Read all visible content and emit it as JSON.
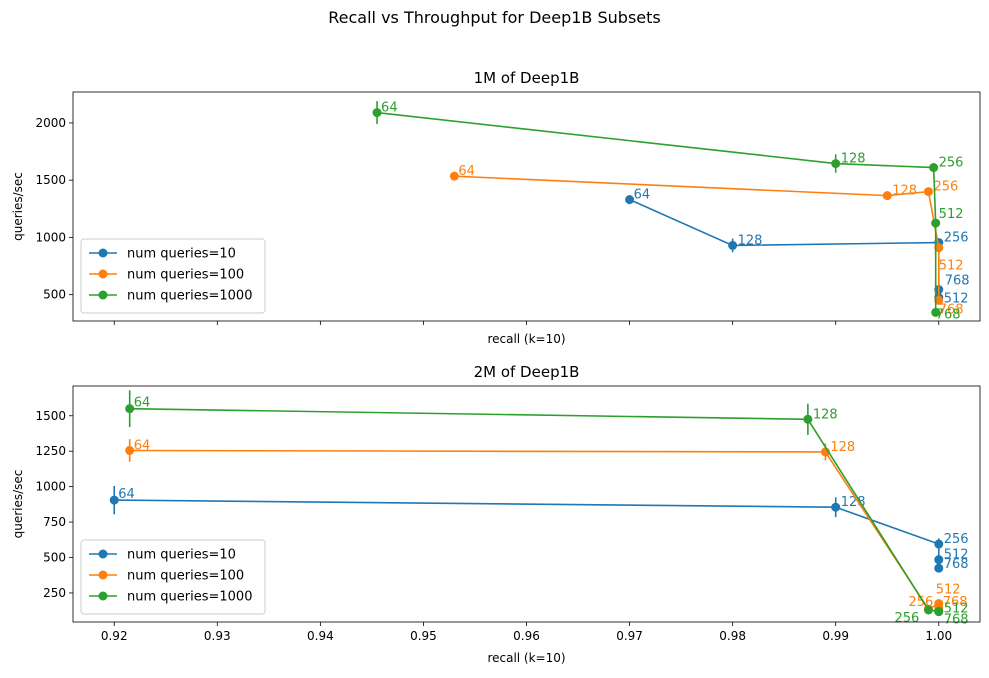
{
  "figure": {
    "title": "Recall vs Throughput for Deep1B Subsets"
  },
  "colors": {
    "num queries=10": "#1f77b4",
    "num queries=100": "#ff7f0e",
    "num queries=1000": "#2ca02c"
  },
  "chart_data": [
    {
      "type": "line",
      "title": "1M of Deep1B",
      "xlabel": "recall (k=10)",
      "ylabel": "queries/sec",
      "xlim": [
        0.916,
        1.004
      ],
      "ylim": [
        270,
        2270
      ],
      "yticks": [
        500,
        1000,
        1500,
        2000
      ],
      "xticks": [
        0.92,
        0.93,
        0.94,
        0.95,
        0.96,
        0.97,
        0.98,
        0.99,
        1.0
      ],
      "show_xticklabels": false,
      "legend": "lower-left",
      "grid": false,
      "series": [
        {
          "name": "num queries=10",
          "color": "#1f77b4",
          "points": [
            {
              "x": 0.97,
              "y": 1330,
              "err": 40,
              "label": "64"
            },
            {
              "x": 0.98,
              "y": 930,
              "err": 60,
              "label": "128"
            },
            {
              "x": 1.0,
              "y": 955,
              "err": 30,
              "label": "256"
            },
            {
              "x": 1.0,
              "y": 475,
              "err": 30,
              "label": "512"
            },
            {
              "x": 1.0,
              "y": 545,
              "err": 30,
              "label": "768"
            }
          ]
        },
        {
          "name": "num queries=100",
          "color": "#ff7f0e",
          "points": [
            {
              "x": 0.953,
              "y": 1535,
              "err": 30,
              "label": "64"
            },
            {
              "x": 0.995,
              "y": 1365,
              "err": 30,
              "label": "128"
            },
            {
              "x": 0.999,
              "y": 1400,
              "err": 30,
              "label": "256"
            },
            {
              "x": 1.0,
              "y": 910,
              "err": 40,
              "label": "512"
            },
            {
              "x": 1.0,
              "y": 450,
              "err": 30,
              "label": "768"
            }
          ]
        },
        {
          "name": "num queries=1000",
          "color": "#2ca02c",
          "points": [
            {
              "x": 0.9455,
              "y": 2090,
              "err": 100,
              "label": "64"
            },
            {
              "x": 0.99,
              "y": 1645,
              "err": 80,
              "label": "128"
            },
            {
              "x": 0.9995,
              "y": 1610,
              "err": 40,
              "label": "256"
            },
            {
              "x": 0.9997,
              "y": 1125,
              "err": 30,
              "label": "512"
            },
            {
              "x": 0.9997,
              "y": 345,
              "err": 30,
              "label": "768"
            }
          ]
        }
      ]
    },
    {
      "type": "line",
      "title": "2M of Deep1B",
      "xlabel": "recall (k=10)",
      "ylabel": "queries/sec",
      "xlim": [
        0.916,
        1.004
      ],
      "ylim": [
        45,
        1710
      ],
      "yticks": [
        250,
        500,
        750,
        1000,
        1250,
        1500
      ],
      "xticks": [
        0.92,
        0.93,
        0.94,
        0.95,
        0.96,
        0.97,
        0.98,
        0.99,
        1.0
      ],
      "xticklabels": [
        "0.92",
        "0.93",
        "0.94",
        "0.95",
        "0.96",
        "0.97",
        "0.98",
        "0.99",
        "1.00"
      ],
      "show_xticklabels": true,
      "legend": "lower-left",
      "grid": false,
      "series": [
        {
          "name": "num queries=10",
          "color": "#1f77b4",
          "points": [
            {
              "x": 0.92,
              "y": 905,
              "err": 100,
              "label": "64"
            },
            {
              "x": 0.99,
              "y": 855,
              "err": 70,
              "label": "128"
            },
            {
              "x": 1.0,
              "y": 595,
              "err": 40,
              "label": "256"
            },
            {
              "x": 1.0,
              "y": 485,
              "err": 30,
              "label": "512"
            },
            {
              "x": 1.0,
              "y": 425,
              "err": 30,
              "label": "768"
            }
          ]
        },
        {
          "name": "num queries=100",
          "color": "#ff7f0e",
          "points": [
            {
              "x": 0.9215,
              "y": 1255,
              "err": 80,
              "label": "64"
            },
            {
              "x": 0.989,
              "y": 1245,
              "err": 60,
              "label": "128"
            },
            {
              "x": 0.999,
              "y": 135,
              "err": 20,
              "label": "256"
            },
            {
              "x": 1.0,
              "y": 175,
              "err": 20,
              "label": "512"
            },
            {
              "x": 1.0,
              "y": 145,
              "err": 20,
              "label": "768"
            }
          ]
        },
        {
          "name": "num queries=1000",
          "color": "#2ca02c",
          "points": [
            {
              "x": 0.9215,
              "y": 1550,
              "err": 130,
              "label": "64"
            },
            {
              "x": 0.9873,
              "y": 1475,
              "err": 110,
              "label": "128"
            },
            {
              "x": 0.999,
              "y": 130,
              "err": 20,
              "label": "256"
            },
            {
              "x": 1.0,
              "y": 120,
              "err": 20,
              "label": "512"
            },
            {
              "x": 1.0,
              "y": 118,
              "err": 20,
              "label": "768"
            }
          ]
        }
      ]
    }
  ]
}
